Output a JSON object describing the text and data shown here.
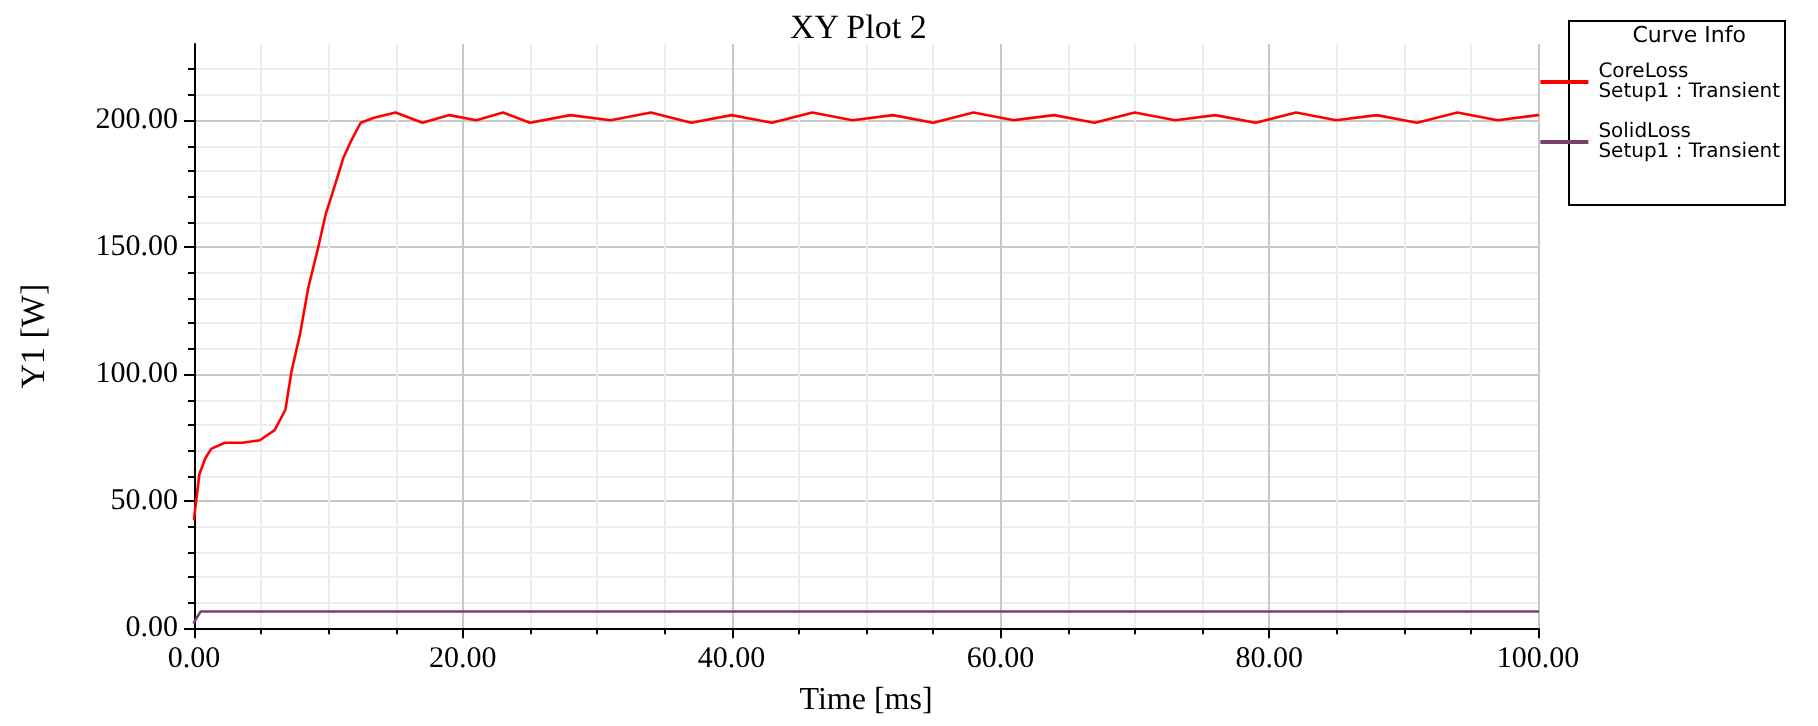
{
  "chart_data": {
    "type": "line",
    "title": "XY Plot 2",
    "xlabel": "Time [ms]",
    "ylabel": "Y1 [W]",
    "legend_title": "Curve Info",
    "legend": "top right",
    "grid": true,
    "marker": "none",
    "line_style": "solid",
    "xlim": [
      0,
      100
    ],
    "xticks": [
      {
        "value": 0,
        "label": "0.00"
      },
      {
        "value": 20,
        "label": "20.00"
      },
      {
        "value": 40,
        "label": "40.00"
      },
      {
        "value": 60,
        "label": "60.00"
      },
      {
        "value": 80,
        "label": "80.00"
      },
      {
        "value": 100,
        "label": "100.00"
      }
    ],
    "ylim": [
      0,
      230
    ],
    "yticks": [
      {
        "value": 0,
        "label": "0.00"
      },
      {
        "value": 50,
        "label": "50.00"
      },
      {
        "value": 100,
        "label": "100.00"
      },
      {
        "value": 150,
        "label": "150.00"
      },
      {
        "value": 200,
        "label": "200.00"
      }
    ],
    "series": [
      {
        "name": "CoreLoss\nSetup1 : Transient",
        "color": "#ff0000",
        "x": [
          0,
          0.4,
          0.85,
          1.3,
          2.3,
          3.6,
          4.9,
          6.0,
          6.8,
          7.25,
          7.9,
          8.5,
          9.2,
          9.8,
          10.4,
          11.1,
          11.7,
          12.4,
          13.4,
          15,
          17,
          19,
          21,
          23,
          25,
          28,
          31,
          34,
          37,
          40,
          43,
          46,
          49,
          52,
          55,
          58,
          61,
          64,
          67,
          70,
          73,
          76,
          79,
          82,
          85,
          88,
          91,
          94,
          97,
          100
        ],
        "values": [
          43,
          60.6,
          67,
          70.7,
          73,
          73,
          74,
          78,
          86,
          101,
          116,
          134,
          149,
          163,
          173,
          185,
          192,
          199,
          201,
          203,
          199,
          202,
          200,
          203,
          199,
          202,
          200,
          203,
          199,
          202,
          199,
          203,
          200,
          202,
          199,
          203,
          200,
          202,
          199,
          203,
          200,
          202,
          199,
          203,
          200,
          202,
          199,
          203,
          200,
          202
        ]
      },
      {
        "name": "SolidLoss\nSetup1 : Transient",
        "color": "#7b3f6e",
        "x": [
          0,
          0.5,
          10,
          20,
          30,
          40,
          50,
          60,
          70,
          80,
          90,
          100
        ],
        "values": [
          2.3,
          6.6,
          6.6,
          6.6,
          6.6,
          6.6,
          6.6,
          6.6,
          6.6,
          6.6,
          6.6,
          6.6
        ]
      }
    ]
  }
}
